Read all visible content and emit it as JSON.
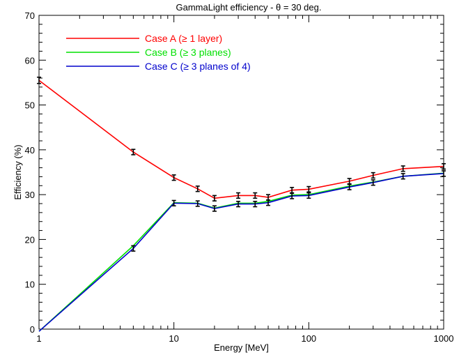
{
  "chart_data": {
    "type": "line",
    "title": "GammaLight efficiency - θ = 30 deg.",
    "xlabel": "Energy [MeV]",
    "ylabel": "Efficiency (%)",
    "xscale": "log",
    "xlim": [
      1,
      1000
    ],
    "ylim": [
      0,
      70
    ],
    "x_ticks": [
      1,
      10,
      100,
      1000
    ],
    "y_ticks": [
      0,
      10,
      20,
      30,
      40,
      50,
      60,
      70
    ],
    "grid": false,
    "legend_position": "top-left",
    "x": [
      1,
      5,
      10,
      15,
      20,
      30,
      40,
      50,
      75,
      100,
      200,
      300,
      500,
      1000
    ],
    "series": [
      {
        "name": "Case A (≥ 1 layer)",
        "color": "#ff0000",
        "values": [
          55.5,
          39.5,
          33.8,
          31.3,
          29.2,
          29.8,
          29.8,
          29.4,
          31.0,
          31.2,
          33.0,
          34.3,
          35.8,
          36.3
        ],
        "errors": [
          0.7,
          0.6,
          0.6,
          0.6,
          0.6,
          0.6,
          0.6,
          0.6,
          0.6,
          0.6,
          0.6,
          0.6,
          0.6,
          0.6
        ]
      },
      {
        "name": "Case B (≥ 3 planes)",
        "color": "#00e000",
        "values": [
          -0.5,
          18.6,
          28.2,
          28.1,
          27.0,
          28.1,
          28.1,
          28.5,
          29.9,
          30.0,
          31.9,
          32.8,
          34.1,
          34.8
        ],
        "errors": [
          0.0,
          0.0,
          0.0,
          0.0,
          0.0,
          0.0,
          0.0,
          0.0,
          0.0,
          0.0,
          0.0,
          0.0,
          0.0,
          0.0
        ]
      },
      {
        "name": "Case C (≥ 3 planes of 4)",
        "color": "#0000cc",
        "values": [
          -0.5,
          18.0,
          28.1,
          28.0,
          26.9,
          27.9,
          27.9,
          28.2,
          29.7,
          29.8,
          31.7,
          32.7,
          34.1,
          34.7
        ],
        "errors": [
          0.0,
          0.6,
          0.6,
          0.6,
          0.6,
          0.6,
          0.6,
          0.6,
          0.6,
          0.6,
          0.6,
          0.6,
          0.6,
          0.6
        ]
      }
    ]
  }
}
